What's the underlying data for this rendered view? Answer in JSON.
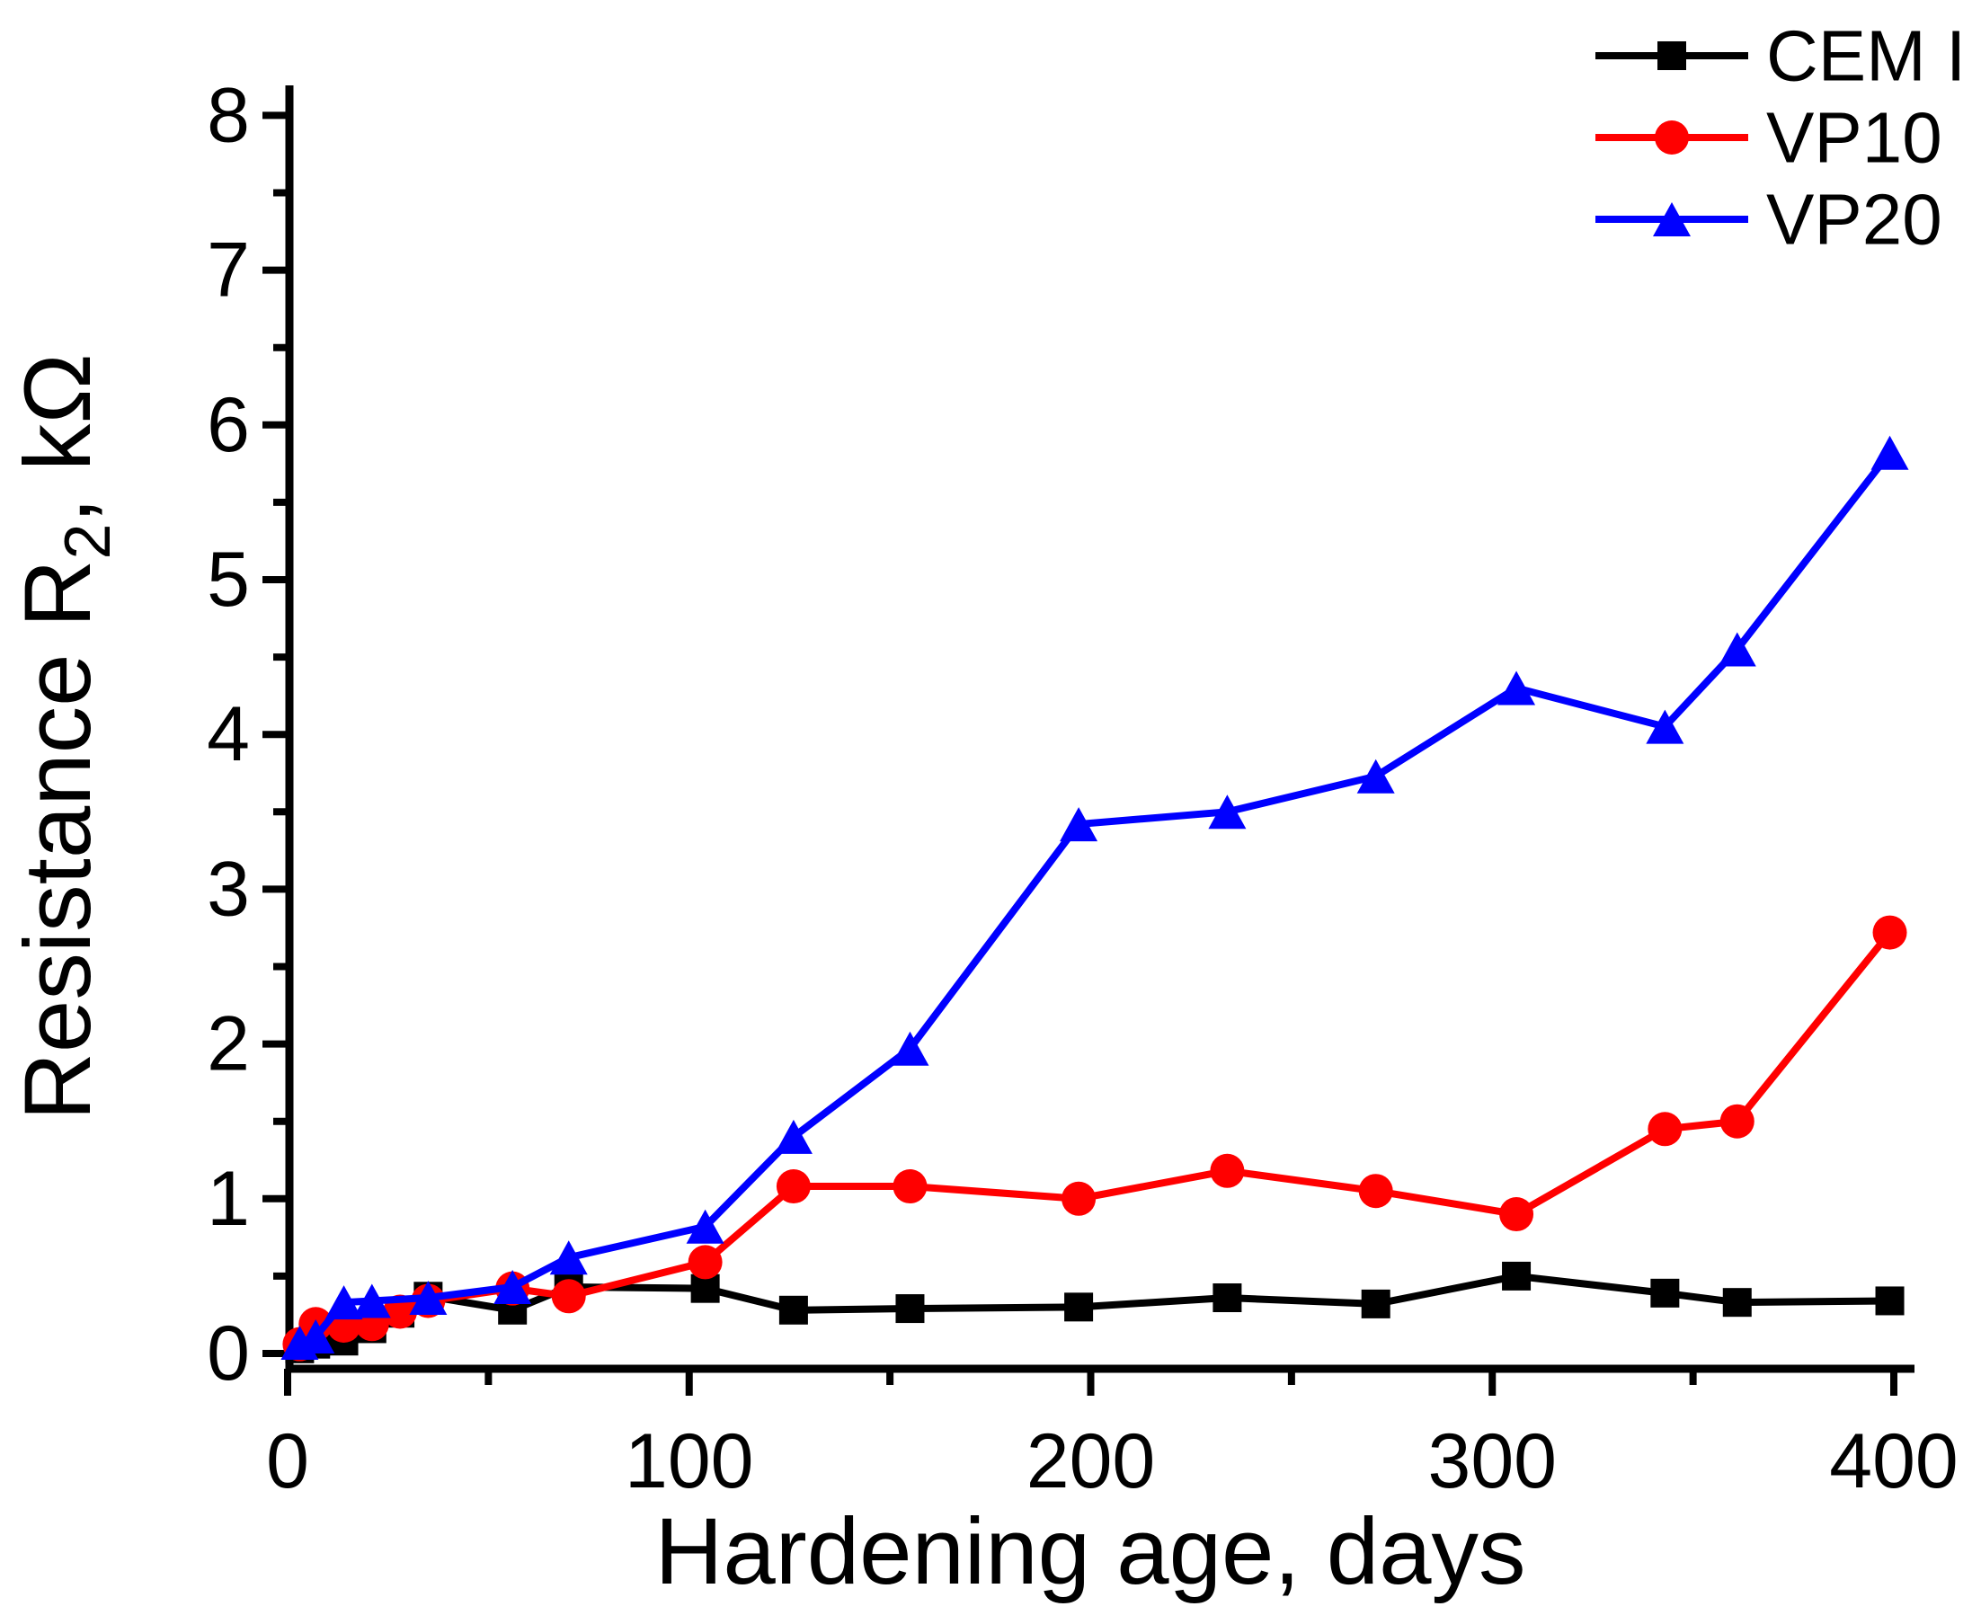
{
  "chart_data": {
    "type": "line",
    "title": "",
    "xlabel": "Hardening age, days",
    "ylabel": {
      "prefix": "Resistance R",
      "subscript": "2",
      "suffix": ",  kΩ"
    },
    "xlim": [
      0,
      400
    ],
    "ylim": [
      0,
      8
    ],
    "x_major_ticks": [
      0,
      100,
      200,
      300,
      400
    ],
    "x_minor_ticks": [
      50,
      150,
      250,
      350
    ],
    "y_major_ticks": [
      0,
      1,
      2,
      3,
      4,
      5,
      6,
      7,
      8
    ],
    "y_minor_ticks": [
      0.5,
      1.5,
      2.5,
      3.5,
      4.5,
      5.5,
      6.5,
      7.5
    ],
    "grid": false,
    "legend_position": "top-right",
    "axis_color": "#000000",
    "background_color": "#ffffff",
    "series": [
      {
        "name": "CEM I",
        "color": "#000000",
        "marker": "square",
        "points": [
          [
            3,
            0.03
          ],
          [
            7,
            0.06
          ],
          [
            14,
            0.08
          ],
          [
            21,
            0.16
          ],
          [
            28,
            0.26
          ],
          [
            35,
            0.37
          ],
          [
            56,
            0.28
          ],
          [
            70,
            0.43
          ],
          [
            104,
            0.42
          ],
          [
            126,
            0.28
          ],
          [
            155,
            0.29
          ],
          [
            197,
            0.3
          ],
          [
            234,
            0.36
          ],
          [
            271,
            0.32
          ],
          [
            306,
            0.5
          ],
          [
            343,
            0.39
          ],
          [
            361,
            0.33
          ],
          [
            399,
            0.34
          ]
        ]
      },
      {
        "name": "VP10",
        "color": "#FF0000",
        "marker": "circle",
        "points": [
          [
            3,
            0.06
          ],
          [
            7,
            0.19
          ],
          [
            14,
            0.18
          ],
          [
            21,
            0.19
          ],
          [
            28,
            0.27
          ],
          [
            35,
            0.34
          ],
          [
            56,
            0.42
          ],
          [
            70,
            0.37
          ],
          [
            104,
            0.59
          ],
          [
            126,
            1.08
          ],
          [
            155,
            1.08
          ],
          [
            197,
            1.0
          ],
          [
            234,
            1.18
          ],
          [
            271,
            1.05
          ],
          [
            306,
            0.9
          ],
          [
            343,
            1.45
          ],
          [
            361,
            1.5
          ],
          [
            399,
            2.72
          ]
        ]
      },
      {
        "name": "VP20",
        "color": "#0000FF",
        "marker": "triangle",
        "points": [
          [
            3,
            0.07
          ],
          [
            7,
            0.11
          ],
          [
            14,
            0.33
          ],
          [
            21,
            0.34
          ],
          [
            35,
            0.36
          ],
          [
            56,
            0.43
          ],
          [
            70,
            0.62
          ],
          [
            104,
            0.82
          ],
          [
            126,
            1.4
          ],
          [
            155,
            1.97
          ],
          [
            197,
            3.42
          ],
          [
            234,
            3.5
          ],
          [
            271,
            3.73
          ],
          [
            306,
            4.3
          ],
          [
            343,
            4.05
          ],
          [
            361,
            4.55
          ],
          [
            399,
            5.82
          ]
        ]
      }
    ]
  }
}
